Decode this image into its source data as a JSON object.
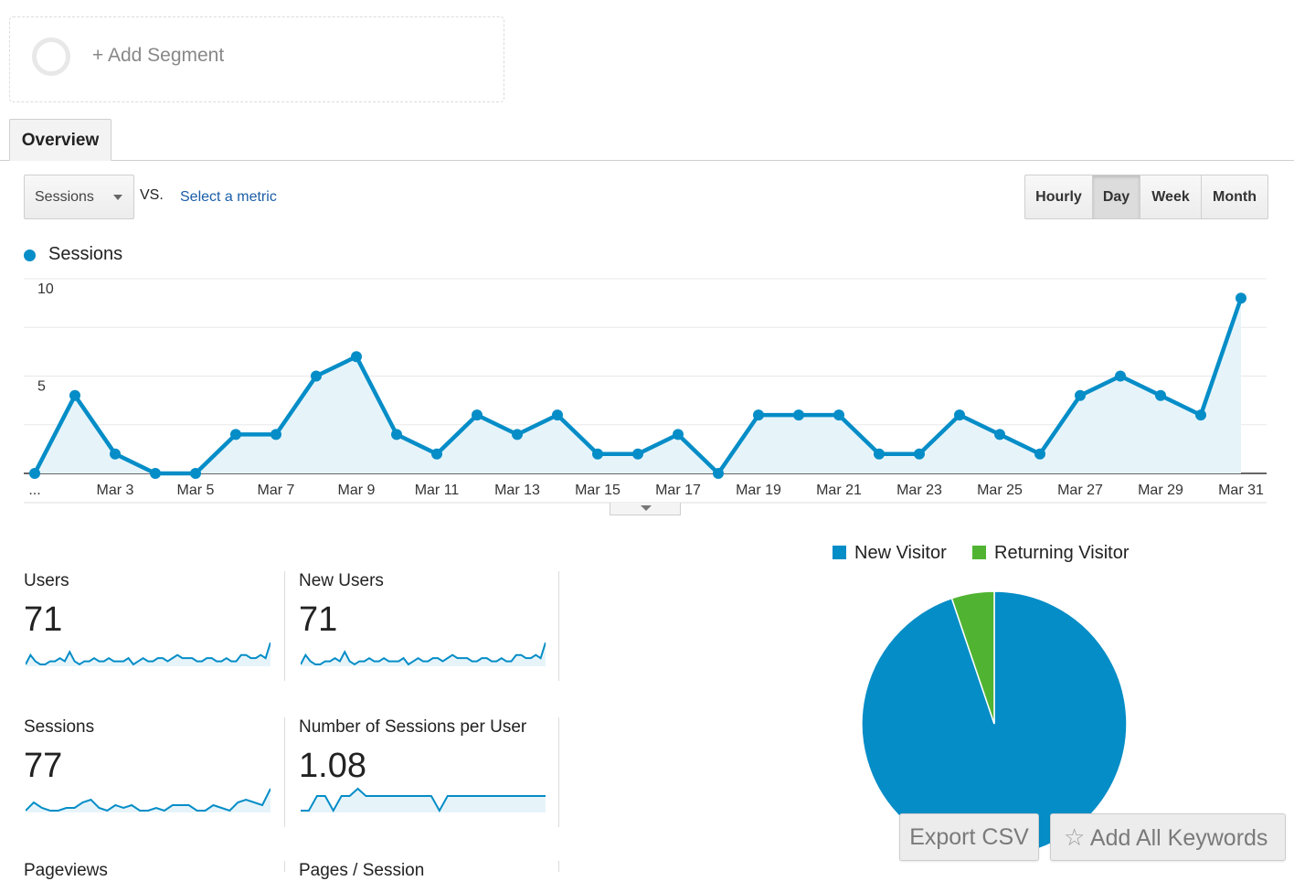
{
  "segment": {
    "add_label": "+ Add Segment"
  },
  "tabs": [
    {
      "label": "Overview",
      "active": true
    }
  ],
  "controls": {
    "metric_select": "Sessions",
    "vs_label": "VS.",
    "select_metric_link": "Select a metric",
    "granularity": [
      {
        "label": "Hourly",
        "active": false
      },
      {
        "label": "Day",
        "active": true
      },
      {
        "label": "Week",
        "active": false
      },
      {
        "label": "Month",
        "active": false
      }
    ]
  },
  "colors": {
    "accent": "#058dc7",
    "returning": "#50b432",
    "area_fill": "#e6f4fa",
    "link": "#1a5ea8"
  },
  "chart_data": [
    {
      "type": "line",
      "legend": [
        "Sessions"
      ],
      "x_tick_labels": [
        "...",
        "Mar 3",
        "Mar 5",
        "Mar 7",
        "Mar 9",
        "Mar 11",
        "Mar 13",
        "Mar 15",
        "Mar 17",
        "Mar 19",
        "Mar 21",
        "Mar 23",
        "Mar 25",
        "Mar 27",
        "Mar 29",
        "Mar 31"
      ],
      "y_tick_labels": [
        "10",
        "5"
      ],
      "ylim": [
        0,
        10
      ],
      "grid": true,
      "area": true,
      "series": [
        {
          "name": "Sessions",
          "x": [
            "Mar 1",
            "Mar 2",
            "Mar 3",
            "Mar 4",
            "Mar 5",
            "Mar 6",
            "Mar 7",
            "Mar 8",
            "Mar 9",
            "Mar 10",
            "Mar 11",
            "Mar 12",
            "Mar 13",
            "Mar 14",
            "Mar 15",
            "Mar 16",
            "Mar 17",
            "Mar 18",
            "Mar 19",
            "Mar 20",
            "Mar 21",
            "Mar 22",
            "Mar 23",
            "Mar 24",
            "Mar 25",
            "Mar 26",
            "Mar 27",
            "Mar 28",
            "Mar 29",
            "Mar 30",
            "Mar 31"
          ],
          "values": [
            0,
            4,
            1,
            0,
            0,
            2,
            2,
            5,
            6,
            2,
            1,
            3,
            2,
            3,
            1,
            1,
            2,
            0,
            3,
            3,
            3,
            1,
            1,
            3,
            2,
            1,
            4,
            5,
            4,
            3,
            9
          ]
        }
      ]
    },
    {
      "type": "pie",
      "legend": [
        "New Visitor",
        "Returning Visitor"
      ],
      "slices": [
        {
          "name": "New Visitor",
          "value": 94.8
        },
        {
          "name": "Returning Visitor",
          "value": 5.2
        }
      ]
    }
  ],
  "scorecards": [
    {
      "label": "Users",
      "value": "71",
      "sparkline": [
        1,
        4,
        2,
        1,
        1,
        2,
        2,
        3,
        2,
        5,
        2,
        1,
        2,
        2,
        3,
        2,
        2,
        3,
        2,
        2,
        2,
        3,
        1,
        2,
        3,
        2,
        2,
        3,
        3,
        2,
        3,
        4,
        3,
        3,
        3,
        2,
        2,
        3,
        3,
        2,
        2,
        3,
        2,
        2,
        4,
        4,
        3,
        3,
        4,
        3,
        8
      ]
    },
    {
      "label": "New Users",
      "value": "71",
      "sparkline": [
        1,
        4,
        2,
        1,
        1,
        2,
        2,
        3,
        2,
        5,
        2,
        1,
        2,
        2,
        3,
        2,
        2,
        3,
        2,
        2,
        2,
        3,
        1,
        2,
        3,
        2,
        2,
        3,
        3,
        2,
        3,
        4,
        3,
        3,
        3,
        2,
        2,
        3,
        3,
        2,
        2,
        3,
        2,
        2,
        4,
        4,
        3,
        3,
        4,
        3,
        8
      ]
    },
    {
      "label": "Sessions",
      "value": "77",
      "sparkline": [
        1,
        4,
        2,
        1,
        1,
        2,
        2,
        4,
        5,
        2,
        1,
        3,
        2,
        3,
        1,
        1,
        2,
        1,
        3,
        3,
        3,
        1,
        1,
        3,
        2,
        1,
        4,
        5,
        4,
        3,
        9
      ]
    },
    {
      "label": "Number of Sessions per User",
      "value": "1.08",
      "sparkline": [
        1,
        1,
        1.08,
        1.08,
        1,
        1.08,
        1.08,
        1.12,
        1.08,
        1.08,
        1.08,
        1.08,
        1.08,
        1.08,
        1.08,
        1.08,
        1.08,
        1,
        1.08,
        1.08,
        1.08,
        1.08,
        1.08,
        1.08,
        1.08,
        1.08,
        1.08,
        1.08,
        1.08,
        1.08,
        1.08
      ]
    },
    {
      "label": "Pageviews",
      "value": ""
    },
    {
      "label": "Pages / Session",
      "value": ""
    }
  ],
  "buttons": {
    "export_csv": "Export CSV",
    "add_all_keywords": "Add All Keywords"
  }
}
